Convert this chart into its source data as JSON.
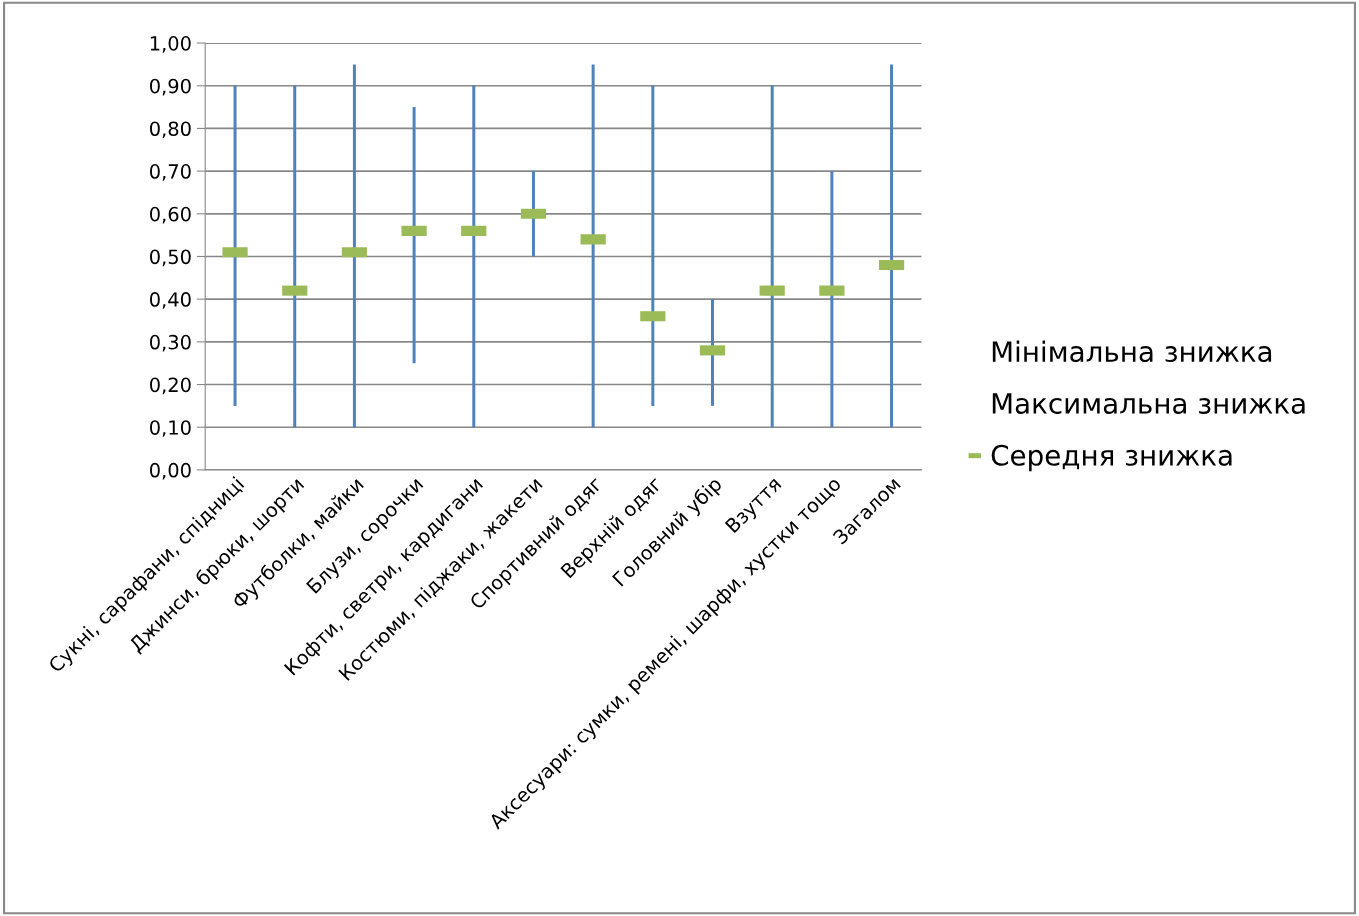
{
  "chart_data": {
    "type": "bar",
    "categories": [
      "Сукні, сарафани, спідниці",
      "Джинси, брюки, шорти",
      "Футболки, майки",
      "Блузи, сорочки",
      "Кофти, светри, кардигани",
      "Костюми, піджаки, жакети",
      "Спортивний одяг",
      "Верхній одяг",
      "Головний убір",
      "Взуття",
      "Аксесуари: сумки, ремені, шарфи, хустки тощо",
      "Загалом"
    ],
    "series": [
      {
        "color": "#4f81bd",
        "base": [
          0.15,
          0.1,
          0.1,
          0.25,
          0.1,
          0.5,
          0.1,
          0.15,
          0.15,
          0.1,
          0.1,
          0.1
        ],
        "values": [
          0.75,
          0.8,
          0.85,
          0.6,
          0.8,
          0.2,
          0.85,
          0.75,
          0.25,
          0.8,
          0.6,
          0.85
        ]
      },
      {
        "type": "scatter",
        "name": "Середня знижка",
        "color": "#9bbb59",
        "values": [
          0.51,
          0.42,
          0.51,
          0.56,
          0.56,
          0.6,
          0.54,
          0.36,
          0.28,
          0.42,
          0.42,
          0.48
        ]
      }
    ],
    "annotations": [
      "Мінімальна знижка",
      "Максимальна знижка"
    ],
    "ylim": [
      0,
      1
    ],
    "yticks": [
      {
        "value": 0,
        "label": "0,00"
      },
      {
        "value": 0.1,
        "label": "0,10"
      },
      {
        "value": 0.2,
        "label": "0,20"
      },
      {
        "value": 0.3,
        "label": "0,30"
      },
      {
        "value": 0.4,
        "label": "0,40"
      },
      {
        "value": 0.5,
        "label": "0,50"
      },
      {
        "value": 0.6,
        "label": "0,60"
      },
      {
        "value": 0.7,
        "label": "0,70"
      },
      {
        "value": 0.8,
        "label": "0,80"
      },
      {
        "value": 0.9,
        "label": "0,90"
      },
      {
        "value": 1,
        "label": "1,00"
      }
    ],
    "grid": "y",
    "legend": "right"
  }
}
